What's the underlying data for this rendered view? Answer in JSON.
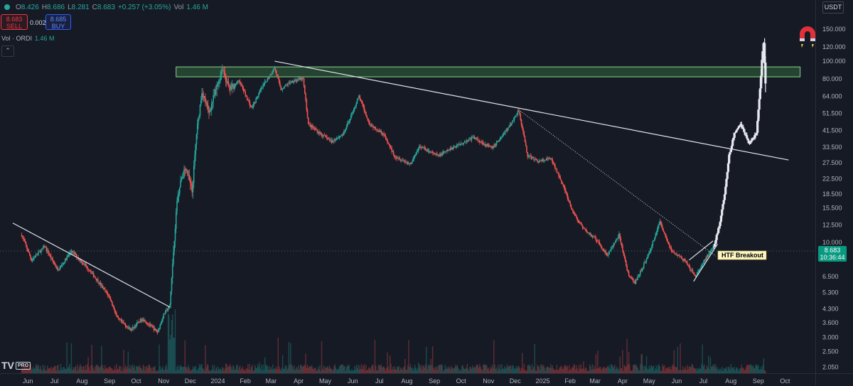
{
  "header": {
    "open_label": "O",
    "open": "8.426",
    "high_label": "H",
    "high": "8.686",
    "low_label": "L",
    "low": "8.281",
    "close_label": "C",
    "close": "8.683",
    "change": "+0.257 (+3.05%)",
    "vol_label": "Vol",
    "vol": "1.46 M"
  },
  "trade": {
    "sell_price": "8.683",
    "sell_label": "SELL",
    "spread": "0.002",
    "buy_price": "8.685",
    "buy_label": "BUY"
  },
  "volume_indicator": {
    "label": "Vol · ORDI",
    "value": "1.46 M"
  },
  "currency": "USDT",
  "last_price": {
    "value": "8.683",
    "countdown": "10:36:44"
  },
  "logo": {
    "text": "TV",
    "badge": "PRO"
  },
  "icons": {
    "magnet": "magnet-icon",
    "collapse": "chevron-up-icon",
    "live": "live-dot-icon"
  },
  "colors": {
    "up": "#26a69a",
    "down": "#ef5350",
    "background": "#161a25",
    "zone": "#4caf50"
  },
  "chart_data": {
    "type": "candlestick",
    "y_scale": "log",
    "ylim": [
      1.9,
      190
    ],
    "y_ticks": [
      "150.000",
      "120.000",
      "100.000",
      "80.000",
      "64.000",
      "51.500",
      "41.500",
      "33.500",
      "27.500",
      "22.500",
      "18.500",
      "15.500",
      "12.500",
      "10.000",
      "8.683",
      "6.500",
      "5.300",
      "4.300",
      "3.600",
      "3.000",
      "2.500",
      "2.050"
    ],
    "x_ticks": [
      "Jun",
      "Jul",
      "Aug",
      "Sep",
      "Oct",
      "Nov",
      "Dec",
      "2024",
      "Feb",
      "Mar",
      "Apr",
      "May",
      "Jun",
      "Jul",
      "Aug",
      "Sep",
      "Oct",
      "Nov",
      "Dec",
      "2025",
      "Feb",
      "Mar",
      "Apr",
      "May",
      "Jun",
      "Jul",
      "Aug",
      "Sep",
      "Oct"
    ],
    "x_start": "2023-05-15",
    "path": [
      [
        "2023-05-25",
        11.0
      ],
      [
        "2023-06-05",
        8.0
      ],
      [
        "2023-06-20",
        9.5
      ],
      [
        "2023-07-05",
        7.0
      ],
      [
        "2023-07-20",
        9.0
      ],
      [
        "2023-08-10",
        7.0
      ],
      [
        "2023-09-01",
        5.0
      ],
      [
        "2023-09-10",
        3.8
      ],
      [
        "2023-09-25",
        3.3
      ],
      [
        "2023-10-08",
        3.8
      ],
      [
        "2023-10-25",
        3.2
      ],
      [
        "2023-11-01",
        4.0
      ],
      [
        "2023-11-08",
        4.5
      ],
      [
        "2023-11-12",
        9.0
      ],
      [
        "2023-11-16",
        17.0
      ],
      [
        "2023-11-20",
        22.0
      ],
      [
        "2023-11-26",
        26.0
      ],
      [
        "2023-12-03",
        19.0
      ],
      [
        "2023-12-08",
        40.0
      ],
      [
        "2023-12-14",
        68.0
      ],
      [
        "2023-12-22",
        52.0
      ],
      [
        "2024-01-01",
        75.0
      ],
      [
        "2024-01-06",
        92.0
      ],
      [
        "2024-01-14",
        70.0
      ],
      [
        "2024-01-25",
        78.0
      ],
      [
        "2024-02-08",
        55.0
      ],
      [
        "2024-02-20",
        72.0
      ],
      [
        "2024-03-05",
        92.0
      ],
      [
        "2024-03-12",
        70.0
      ],
      [
        "2024-03-25",
        78.0
      ],
      [
        "2024-04-06",
        80.0
      ],
      [
        "2024-04-12",
        45.0
      ],
      [
        "2024-04-25",
        40.0
      ],
      [
        "2024-05-08",
        36.0
      ],
      [
        "2024-05-22",
        40.0
      ],
      [
        "2024-06-08",
        64.0
      ],
      [
        "2024-06-20",
        45.0
      ],
      [
        "2024-07-05",
        40.0
      ],
      [
        "2024-07-18",
        30.0
      ],
      [
        "2024-08-05",
        27.0
      ],
      [
        "2024-08-15",
        34.0
      ],
      [
        "2024-09-05",
        30.0
      ],
      [
        "2024-09-25",
        34.0
      ],
      [
        "2024-10-15",
        38.0
      ],
      [
        "2024-11-05",
        33.0
      ],
      [
        "2024-11-25",
        44.0
      ],
      [
        "2024-12-05",
        54.0
      ],
      [
        "2024-12-15",
        30.0
      ],
      [
        "2024-12-28",
        28.0
      ],
      [
        "2025-01-10",
        29.0
      ],
      [
        "2025-01-22",
        22.0
      ],
      [
        "2025-02-03",
        15.0
      ],
      [
        "2025-02-15",
        12.0
      ],
      [
        "2025-03-01",
        10.5
      ],
      [
        "2025-03-15",
        8.5
      ],
      [
        "2025-03-28",
        11.0
      ],
      [
        "2025-04-08",
        6.5
      ],
      [
        "2025-04-15",
        6.0
      ],
      [
        "2025-04-30",
        8.5
      ],
      [
        "2025-05-13",
        13.0
      ],
      [
        "2025-05-26",
        9.0
      ],
      [
        "2025-06-09",
        8.0
      ],
      [
        "2025-06-22",
        6.5
      ],
      [
        "2025-07-05",
        8.4
      ],
      [
        "2025-07-13",
        9.5
      ],
      [
        "2025-07-20",
        13.0
      ],
      [
        "2025-07-26",
        20.0
      ],
      [
        "2025-07-30",
        30.0
      ],
      [
        "2025-08-05",
        40.0
      ],
      [
        "2025-08-12",
        45.0
      ],
      [
        "2025-08-22",
        35.0
      ],
      [
        "2025-08-30",
        40.0
      ],
      [
        "2025-09-03",
        75.0
      ],
      [
        "2025-09-07",
        125.0
      ],
      [
        "2025-09-09",
        80.0
      ]
    ],
    "highlight_segment": {
      "from": "2025-07-13",
      "to": "2025-09-09"
    },
    "resistance_zone": {
      "x_from": "2023-11-15",
      "x_to": "2025-10-18",
      "y_from": 82,
      "y_to": 93
    },
    "trendlines": [
      {
        "from": [
          "2023-05-15",
          12.8
        ],
        "to": [
          "2023-11-08",
          4.4
        ],
        "style": "solid"
      },
      {
        "from": [
          "2024-03-05",
          100.0
        ],
        "to": [
          "2025-10-05",
          28.5
        ],
        "style": "solid"
      },
      {
        "from": [
          "2024-12-05",
          54.0
        ],
        "to": [
          "2025-07-15",
          8.4
        ],
        "style": "dotted"
      },
      {
        "from": [
          "2025-06-20",
          6.1
        ],
        "to": [
          "2025-07-17",
          9.8
        ],
        "style": "solid"
      },
      {
        "from": [
          "2025-06-15",
          8.0
        ],
        "to": [
          "2025-07-12",
          10.2
        ],
        "style": "solid"
      }
    ],
    "annotations": [
      {
        "text": "HTF Breakout",
        "x": "2025-07-15",
        "y": 8.5
      }
    ]
  }
}
